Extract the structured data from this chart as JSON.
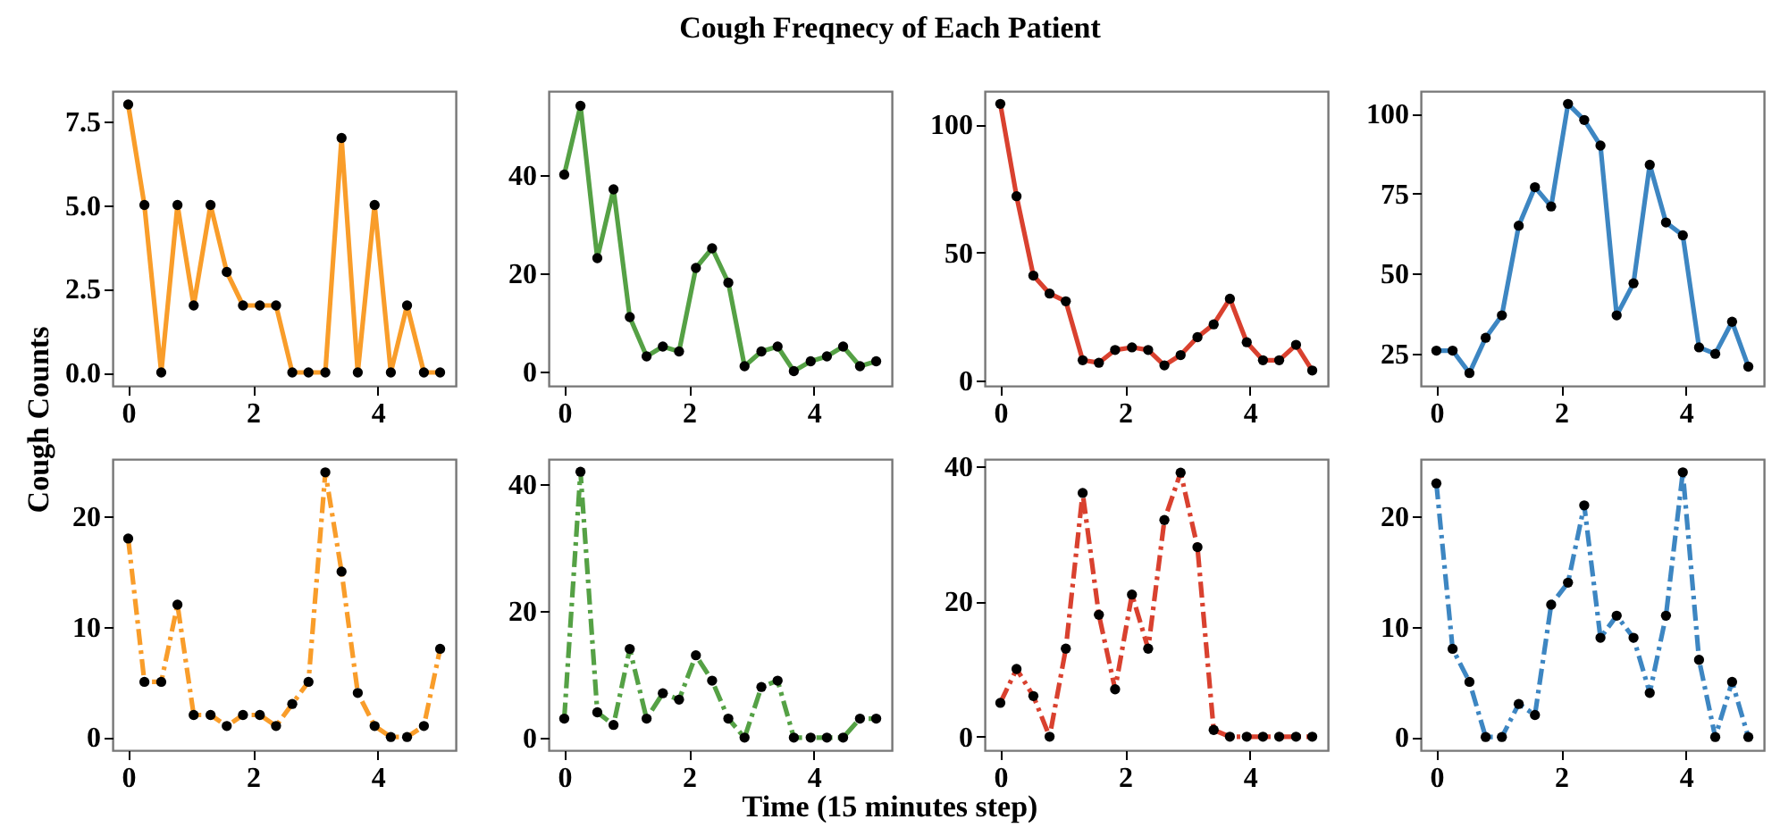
{
  "chart_data": [
    {
      "type": "other",
      "title": "Cough Freqnecy of Each Patient",
      "xlabel": "Time (15 minutes step)"
    },
    {
      "type": "line",
      "ylabel": "Cough Counts",
      "x": [
        0,
        0.26,
        0.53,
        0.79,
        1.05,
        1.32,
        1.58,
        1.84,
        2.11,
        2.37,
        2.63,
        2.89,
        3.16,
        3.42,
        3.68,
        3.95,
        4.21,
        4.47,
        4.74,
        5
      ],
      "xlim": [
        -0.25,
        5.25
      ],
      "xticks": [
        0,
        2,
        4
      ],
      "ylim": [
        -0.4,
        8.4
      ],
      "yticks": [
        {
          "value": 0,
          "label": "0.0"
        },
        {
          "value": 2.5,
          "label": "2.5"
        },
        {
          "value": 5,
          "label": "5.0"
        },
        {
          "value": 7.5,
          "label": "7.5"
        }
      ],
      "marker": "circle",
      "line_style": "solid",
      "series": [
        {
          "color": "#f99d2a",
          "values": [
            8,
            5,
            0,
            5,
            2,
            5,
            3,
            2,
            2,
            2,
            0,
            0,
            0,
            7,
            0,
            5,
            0,
            2,
            0,
            0
          ]
        }
      ]
    },
    {
      "type": "line",
      "x": [
        0,
        0.26,
        0.53,
        0.79,
        1.05,
        1.32,
        1.58,
        1.84,
        2.11,
        2.37,
        2.63,
        2.89,
        3.16,
        3.42,
        3.68,
        3.95,
        4.21,
        4.47,
        4.74,
        5
      ],
      "xlim": [
        -0.25,
        5.25
      ],
      "xticks": [
        0,
        2,
        4
      ],
      "ylim": [
        -3,
        57
      ],
      "yticks": [
        0,
        20,
        40
      ],
      "marker": "circle",
      "line_style": "solid",
      "series": [
        {
          "color": "#55a145",
          "values": [
            40,
            54,
            23,
            37,
            11,
            3,
            5,
            4,
            21,
            25,
            18,
            1,
            4,
            5,
            0,
            2,
            3,
            5,
            1,
            2
          ]
        }
      ]
    },
    {
      "type": "line",
      "x": [
        0,
        0.26,
        0.53,
        0.79,
        1.05,
        1.32,
        1.58,
        1.84,
        2.11,
        2.37,
        2.63,
        2.89,
        3.16,
        3.42,
        3.68,
        3.95,
        4.21,
        4.47,
        4.74,
        5
      ],
      "xlim": [
        -0.25,
        5.25
      ],
      "xticks": [
        0,
        2,
        4
      ],
      "ylim": [
        -2,
        113
      ],
      "yticks": [
        0,
        50,
        100
      ],
      "marker": "circle",
      "line_style": "solid",
      "series": [
        {
          "color": "#d9412f",
          "values": [
            108,
            72,
            41,
            34,
            31,
            8,
            7,
            12,
            13,
            12,
            6,
            10,
            17,
            22,
            32,
            15,
            8,
            8,
            14,
            4
          ]
        }
      ]
    },
    {
      "type": "line",
      "x": [
        0,
        0.26,
        0.53,
        0.79,
        1.05,
        1.32,
        1.58,
        1.84,
        2.11,
        2.37,
        2.63,
        2.89,
        3.16,
        3.42,
        3.68,
        3.95,
        4.21,
        4.47,
        4.74,
        5
      ],
      "xlim": [
        -0.25,
        5.25
      ],
      "xticks": [
        0,
        2,
        4
      ],
      "ylim": [
        15,
        107
      ],
      "yticks": [
        25,
        50,
        75,
        100
      ],
      "marker": "circle",
      "line_style": "solid",
      "series": [
        {
          "color": "#3d86c2",
          "values": [
            26,
            26,
            19,
            30,
            37,
            65,
            77,
            71,
            103,
            98,
            90,
            37,
            47,
            84,
            66,
            62,
            27,
            25,
            35,
            21
          ]
        }
      ]
    },
    {
      "type": "line",
      "x": [
        0,
        0.26,
        0.53,
        0.79,
        1.05,
        1.32,
        1.58,
        1.84,
        2.11,
        2.37,
        2.63,
        2.89,
        3.16,
        3.42,
        3.68,
        3.95,
        4.21,
        4.47,
        4.74,
        5
      ],
      "xlim": [
        -0.25,
        5.25
      ],
      "xticks": [
        0,
        2,
        4
      ],
      "ylim": [
        -1.2,
        25.2
      ],
      "yticks": [
        0,
        10,
        20
      ],
      "marker": "circle",
      "line_style": "dashed",
      "series": [
        {
          "color": "#f99d2a",
          "values": [
            18,
            5,
            5,
            12,
            2,
            2,
            1,
            2,
            2,
            1,
            3,
            5,
            24,
            15,
            4,
            1,
            0,
            0,
            1,
            8
          ]
        }
      ]
    },
    {
      "type": "line",
      "x": [
        0,
        0.26,
        0.53,
        0.79,
        1.05,
        1.32,
        1.58,
        1.84,
        2.11,
        2.37,
        2.63,
        2.89,
        3.16,
        3.42,
        3.68,
        3.95,
        4.21,
        4.47,
        4.74,
        5
      ],
      "xlim": [
        -0.25,
        5.25
      ],
      "xticks": [
        0,
        2,
        4
      ],
      "ylim": [
        -2,
        44
      ],
      "yticks": [
        0,
        20,
        40
      ],
      "marker": "circle",
      "line_style": "dashed",
      "series": [
        {
          "color": "#55a145",
          "values": [
            3,
            42,
            4,
            2,
            14,
            3,
            7,
            6,
            13,
            9,
            3,
            0,
            8,
            9,
            0,
            0,
            0,
            0,
            3,
            3
          ]
        }
      ]
    },
    {
      "type": "line",
      "x": [
        0,
        0.26,
        0.53,
        0.79,
        1.05,
        1.32,
        1.58,
        1.84,
        2.11,
        2.37,
        2.63,
        2.89,
        3.16,
        3.42,
        3.68,
        3.95,
        4.21,
        4.47,
        4.74,
        5
      ],
      "xlim": [
        -0.25,
        5.25
      ],
      "xticks": [
        0,
        2,
        4
      ],
      "ylim": [
        -2,
        41
      ],
      "yticks": [
        0,
        20,
        40
      ],
      "marker": "circle",
      "line_style": "dashed",
      "series": [
        {
          "color": "#d9412f",
          "values": [
            5,
            10,
            6,
            0,
            13,
            36,
            18,
            7,
            21,
            13,
            32,
            39,
            28,
            1,
            0,
            0,
            0,
            0,
            0,
            0
          ]
        }
      ]
    },
    {
      "type": "line",
      "x": [
        0,
        0.26,
        0.53,
        0.79,
        1.05,
        1.32,
        1.58,
        1.84,
        2.11,
        2.37,
        2.63,
        2.89,
        3.16,
        3.42,
        3.68,
        3.95,
        4.21,
        4.47,
        4.74,
        5
      ],
      "xlim": [
        -0.25,
        5.25
      ],
      "xticks": [
        0,
        2,
        4
      ],
      "ylim": [
        -1.2,
        25.2
      ],
      "yticks": [
        0,
        10,
        20
      ],
      "marker": "circle",
      "line_style": "dashed",
      "series": [
        {
          "color": "#3d86c2",
          "values": [
            23,
            8,
            5,
            0,
            0,
            3,
            2,
            12,
            14,
            21,
            9,
            11,
            9,
            4,
            11,
            24,
            7,
            0,
            5,
            0
          ]
        }
      ]
    }
  ]
}
